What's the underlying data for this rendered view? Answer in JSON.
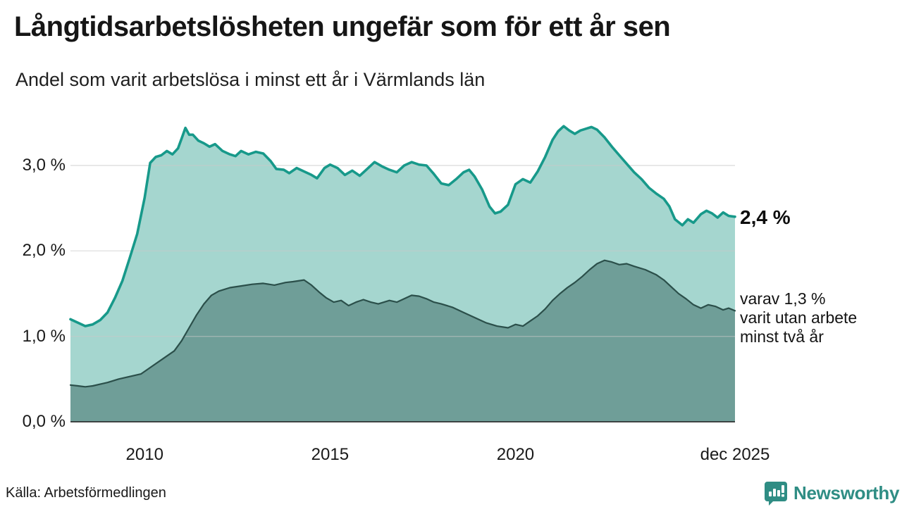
{
  "header": {
    "title": "Långtidsarbetslösheten ungefär som för ett år sen",
    "subtitle": "Andel som varit arbetslösa i minst ett år i Värmlands län"
  },
  "annotations": {
    "latest_total": "2,4 %",
    "sub_lines": [
      "varav 1,3 %",
      "varit utan arbete",
      "minst två år"
    ]
  },
  "footer": {
    "source": "Källa: Arbetsförmedlingen",
    "logo_text": "Newsworthy"
  },
  "colors": {
    "line_total": "#17998a",
    "fill_total": "#a5d6cf",
    "line_two_year": "#2b4f4a",
    "fill_two_year": "#6f9e98",
    "gridline": "#c9c9c9",
    "axis": "#1a1a1a",
    "brand_teal": "#2f8d84",
    "text": "#1a1a1a"
  },
  "chart_data": {
    "type": "area",
    "title": "Långtidsarbetslösheten ungefär som för ett år sen",
    "subtitle": "Andel som varit arbetslösa i minst ett år i Värmlands län",
    "source": "Källa: Arbetsförmedlingen",
    "unit": "%",
    "x_range": [
      2008.0,
      2025.92
    ],
    "y_range": [
      0,
      3.6
    ],
    "grid": "horizontal",
    "legend_position": "right-annotations",
    "x_axis_ticks": [
      {
        "x": 2010,
        "label": "2010"
      },
      {
        "x": 2015,
        "label": "2015"
      },
      {
        "x": 2020,
        "label": "2020"
      },
      {
        "x": 2025.92,
        "label": "dec 2025"
      }
    ],
    "y_axis_ticks": [
      {
        "v": 0,
        "label": "0,0 %"
      },
      {
        "v": 1,
        "label": "1,0 %"
      },
      {
        "v": 2,
        "label": "2,0 %"
      },
      {
        "v": 3,
        "label": "3,0 %"
      }
    ],
    "series": [
      {
        "name": "Andel arbetslösa minst ett år",
        "end_label": "2,4 %",
        "end_value": 2.4,
        "points": [
          [
            2008.0,
            1.2
          ],
          [
            2008.2,
            1.16
          ],
          [
            2008.4,
            1.12
          ],
          [
            2008.6,
            1.14
          ],
          [
            2008.8,
            1.19
          ],
          [
            2009.0,
            1.28
          ],
          [
            2009.2,
            1.45
          ],
          [
            2009.4,
            1.65
          ],
          [
            2009.6,
            1.92
          ],
          [
            2009.8,
            2.2
          ],
          [
            2010.0,
            2.62
          ],
          [
            2010.15,
            3.03
          ],
          [
            2010.3,
            3.1
          ],
          [
            2010.45,
            3.12
          ],
          [
            2010.6,
            3.17
          ],
          [
            2010.75,
            3.13
          ],
          [
            2010.9,
            3.2
          ],
          [
            2011.0,
            3.32
          ],
          [
            2011.1,
            3.44
          ],
          [
            2011.2,
            3.36
          ],
          [
            2011.3,
            3.36
          ],
          [
            2011.45,
            3.29
          ],
          [
            2011.6,
            3.26
          ],
          [
            2011.75,
            3.22
          ],
          [
            2011.9,
            3.25
          ],
          [
            2012.1,
            3.17
          ],
          [
            2012.3,
            3.13
          ],
          [
            2012.45,
            3.11
          ],
          [
            2012.6,
            3.17
          ],
          [
            2012.8,
            3.13
          ],
          [
            2013.0,
            3.16
          ],
          [
            2013.2,
            3.14
          ],
          [
            2013.4,
            3.05
          ],
          [
            2013.55,
            2.96
          ],
          [
            2013.75,
            2.95
          ],
          [
            2013.9,
            2.91
          ],
          [
            2014.1,
            2.97
          ],
          [
            2014.3,
            2.93
          ],
          [
            2014.5,
            2.89
          ],
          [
            2014.65,
            2.85
          ],
          [
            2014.85,
            2.97
          ],
          [
            2015.0,
            3.01
          ],
          [
            2015.2,
            2.97
          ],
          [
            2015.4,
            2.89
          ],
          [
            2015.6,
            2.94
          ],
          [
            2015.8,
            2.88
          ],
          [
            2016.0,
            2.96
          ],
          [
            2016.2,
            3.04
          ],
          [
            2016.4,
            2.99
          ],
          [
            2016.6,
            2.95
          ],
          [
            2016.8,
            2.92
          ],
          [
            2017.0,
            3.0
          ],
          [
            2017.2,
            3.04
          ],
          [
            2017.4,
            3.01
          ],
          [
            2017.6,
            3.0
          ],
          [
            2017.8,
            2.9
          ],
          [
            2018.0,
            2.79
          ],
          [
            2018.2,
            2.77
          ],
          [
            2018.4,
            2.84
          ],
          [
            2018.6,
            2.92
          ],
          [
            2018.75,
            2.95
          ],
          [
            2018.9,
            2.87
          ],
          [
            2019.1,
            2.72
          ],
          [
            2019.3,
            2.52
          ],
          [
            2019.45,
            2.44
          ],
          [
            2019.6,
            2.46
          ],
          [
            2019.8,
            2.54
          ],
          [
            2020.0,
            2.78
          ],
          [
            2020.2,
            2.84
          ],
          [
            2020.4,
            2.8
          ],
          [
            2020.6,
            2.93
          ],
          [
            2020.8,
            3.1
          ],
          [
            2021.0,
            3.3
          ],
          [
            2021.15,
            3.4
          ],
          [
            2021.3,
            3.46
          ],
          [
            2021.45,
            3.41
          ],
          [
            2021.6,
            3.37
          ],
          [
            2021.75,
            3.41
          ],
          [
            2021.9,
            3.43
          ],
          [
            2022.05,
            3.45
          ],
          [
            2022.2,
            3.42
          ],
          [
            2022.4,
            3.33
          ],
          [
            2022.6,
            3.22
          ],
          [
            2022.8,
            3.12
          ],
          [
            2023.0,
            3.02
          ],
          [
            2023.2,
            2.92
          ],
          [
            2023.4,
            2.84
          ],
          [
            2023.6,
            2.74
          ],
          [
            2023.8,
            2.67
          ],
          [
            2024.0,
            2.61
          ],
          [
            2024.15,
            2.52
          ],
          [
            2024.3,
            2.37
          ],
          [
            2024.5,
            2.3
          ],
          [
            2024.65,
            2.37
          ],
          [
            2024.8,
            2.33
          ],
          [
            2025.0,
            2.43
          ],
          [
            2025.15,
            2.47
          ],
          [
            2025.3,
            2.44
          ],
          [
            2025.45,
            2.39
          ],
          [
            2025.6,
            2.45
          ],
          [
            2025.75,
            2.41
          ],
          [
            2025.92,
            2.4
          ]
        ]
      },
      {
        "name": "varav utan arbete minst två år",
        "end_label": "varav 1,3 % varit utan arbete minst två år",
        "end_value": 1.3,
        "points": [
          [
            2008.0,
            0.43
          ],
          [
            2008.2,
            0.42
          ],
          [
            2008.4,
            0.41
          ],
          [
            2008.6,
            0.42
          ],
          [
            2008.8,
            0.44
          ],
          [
            2009.0,
            0.46
          ],
          [
            2009.3,
            0.5
          ],
          [
            2009.6,
            0.53
          ],
          [
            2009.9,
            0.56
          ],
          [
            2010.2,
            0.65
          ],
          [
            2010.5,
            0.74
          ],
          [
            2010.8,
            0.83
          ],
          [
            2011.0,
            0.95
          ],
          [
            2011.2,
            1.1
          ],
          [
            2011.4,
            1.25
          ],
          [
            2011.6,
            1.38
          ],
          [
            2011.8,
            1.48
          ],
          [
            2012.0,
            1.53
          ],
          [
            2012.3,
            1.57
          ],
          [
            2012.6,
            1.59
          ],
          [
            2012.9,
            1.61
          ],
          [
            2013.2,
            1.62
          ],
          [
            2013.5,
            1.6
          ],
          [
            2013.8,
            1.63
          ],
          [
            2014.0,
            1.64
          ],
          [
            2014.3,
            1.66
          ],
          [
            2014.5,
            1.6
          ],
          [
            2014.7,
            1.52
          ],
          [
            2014.9,
            1.45
          ],
          [
            2015.1,
            1.4
          ],
          [
            2015.3,
            1.42
          ],
          [
            2015.5,
            1.36
          ],
          [
            2015.7,
            1.4
          ],
          [
            2015.9,
            1.43
          ],
          [
            2016.1,
            1.4
          ],
          [
            2016.3,
            1.38
          ],
          [
            2016.6,
            1.42
          ],
          [
            2016.8,
            1.4
          ],
          [
            2017.0,
            1.44
          ],
          [
            2017.2,
            1.48
          ],
          [
            2017.4,
            1.47
          ],
          [
            2017.6,
            1.44
          ],
          [
            2017.8,
            1.4
          ],
          [
            2018.0,
            1.38
          ],
          [
            2018.3,
            1.34
          ],
          [
            2018.6,
            1.28
          ],
          [
            2018.9,
            1.22
          ],
          [
            2019.2,
            1.16
          ],
          [
            2019.5,
            1.12
          ],
          [
            2019.8,
            1.1
          ],
          [
            2020.0,
            1.14
          ],
          [
            2020.2,
            1.12
          ],
          [
            2020.4,
            1.18
          ],
          [
            2020.6,
            1.24
          ],
          [
            2020.8,
            1.32
          ],
          [
            2021.0,
            1.42
          ],
          [
            2021.2,
            1.5
          ],
          [
            2021.4,
            1.57
          ],
          [
            2021.6,
            1.63
          ],
          [
            2021.8,
            1.7
          ],
          [
            2022.0,
            1.78
          ],
          [
            2022.2,
            1.85
          ],
          [
            2022.4,
            1.89
          ],
          [
            2022.6,
            1.87
          ],
          [
            2022.8,
            1.84
          ],
          [
            2023.0,
            1.85
          ],
          [
            2023.2,
            1.82
          ],
          [
            2023.5,
            1.78
          ],
          [
            2023.8,
            1.72
          ],
          [
            2024.0,
            1.66
          ],
          [
            2024.2,
            1.58
          ],
          [
            2024.4,
            1.5
          ],
          [
            2024.6,
            1.44
          ],
          [
            2024.8,
            1.37
          ],
          [
            2025.0,
            1.33
          ],
          [
            2025.2,
            1.37
          ],
          [
            2025.4,
            1.35
          ],
          [
            2025.6,
            1.31
          ],
          [
            2025.75,
            1.33
          ],
          [
            2025.92,
            1.3
          ]
        ]
      }
    ]
  }
}
